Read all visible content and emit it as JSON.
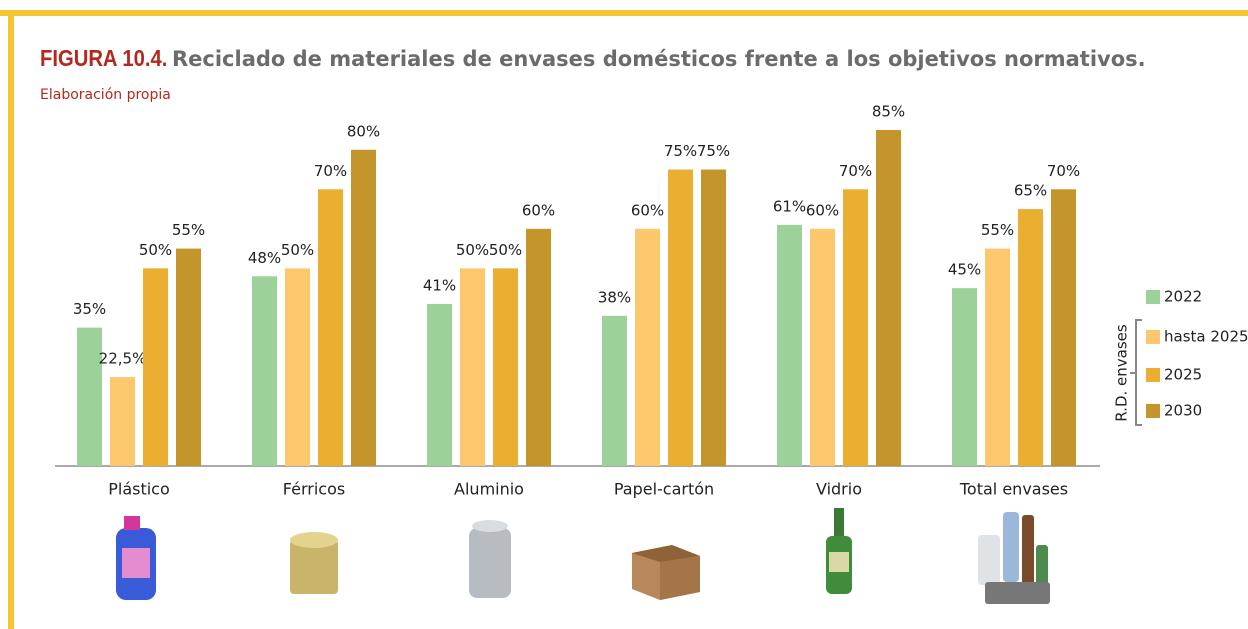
{
  "chart_data": {
    "type": "bar",
    "figure_label": "FIGURA 10.4.",
    "title": "Reciclado de materiales de envases domésticos frente a los objetivos normativos.",
    "subtitle": "Elaboración propia",
    "legend_group_label": "R.D. envases",
    "categories": [
      "Plástico",
      "Férricos",
      "Aluminio",
      "Papel-cartón",
      "Vidrio",
      "Total envases"
    ],
    "series": [
      {
        "name": "2022",
        "color": "#9dd19a",
        "values": [
          35,
          48,
          41,
          38,
          61,
          45
        ],
        "value_labels": [
          "35%",
          "48%",
          "41%",
          "38%",
          "61%",
          "45%"
        ]
      },
      {
        "name": "hasta 2025",
        "color": "#fdc76e",
        "values": [
          22.5,
          50,
          50,
          60,
          60,
          55
        ],
        "value_labels": [
          "22,5%",
          "50%",
          "50%",
          "60%",
          "60%",
          "55%"
        ]
      },
      {
        "name": "2025",
        "color": "#eaaf30",
        "values": [
          50,
          70,
          50,
          75,
          70,
          65
        ],
        "value_labels": [
          "50%",
          "70%",
          "50%",
          "75%",
          "70%",
          "65%"
        ]
      },
      {
        "name": "2030",
        "color": "#c4952a",
        "values": [
          55,
          80,
          60,
          75,
          85,
          70
        ],
        "value_labels": [
          "55%",
          "80%",
          "60%",
          "75%",
          "85%",
          "70%"
        ]
      }
    ],
    "legend_position": "right"
  }
}
